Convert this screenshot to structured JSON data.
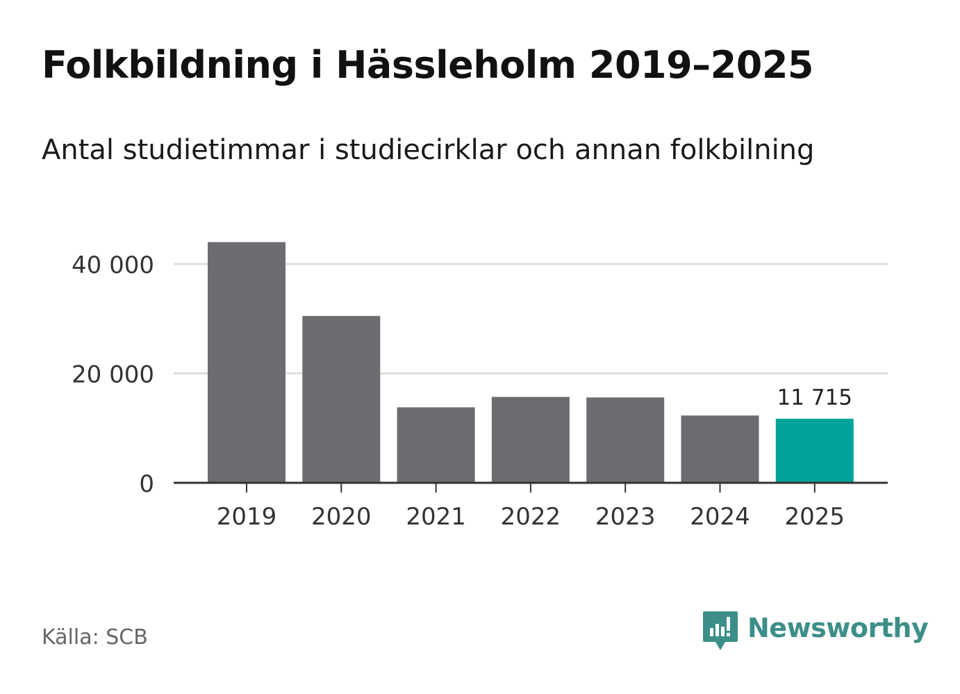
{
  "header": {
    "title": "Folkbildning i Hässleholm 2019–2025",
    "subtitle": "Antal studietimmar i studiecirklar och annan folkbilning"
  },
  "footer": {
    "source": "Källa: SCB",
    "brand": "Newsworthy",
    "brand_icon": "newsworthy-logo-icon",
    "brand_color": "#3c8f88"
  },
  "chart_data": {
    "type": "bar",
    "title": "Folkbildning i Hässleholm 2019–2025",
    "subtitle": "Antal studietimmar i studiecirklar och annan folkbilning",
    "categories": [
      "2019",
      "2020",
      "2021",
      "2022",
      "2023",
      "2024",
      "2025"
    ],
    "values": [
      44000,
      30500,
      13800,
      15700,
      15600,
      12300,
      11715
    ],
    "highlight_index": 6,
    "highlight_label": "11 715",
    "yticks": [
      0,
      20000,
      40000
    ],
    "ytick_labels": [
      "0",
      "20 000",
      "40 000"
    ],
    "ylim": [
      0,
      44000
    ],
    "xlabel": "",
    "ylabel": "",
    "grid": true,
    "colors": {
      "bar": "#6d6c71",
      "highlight": "#00a39a",
      "grid": "#dddddd",
      "axis": "#333333"
    }
  }
}
